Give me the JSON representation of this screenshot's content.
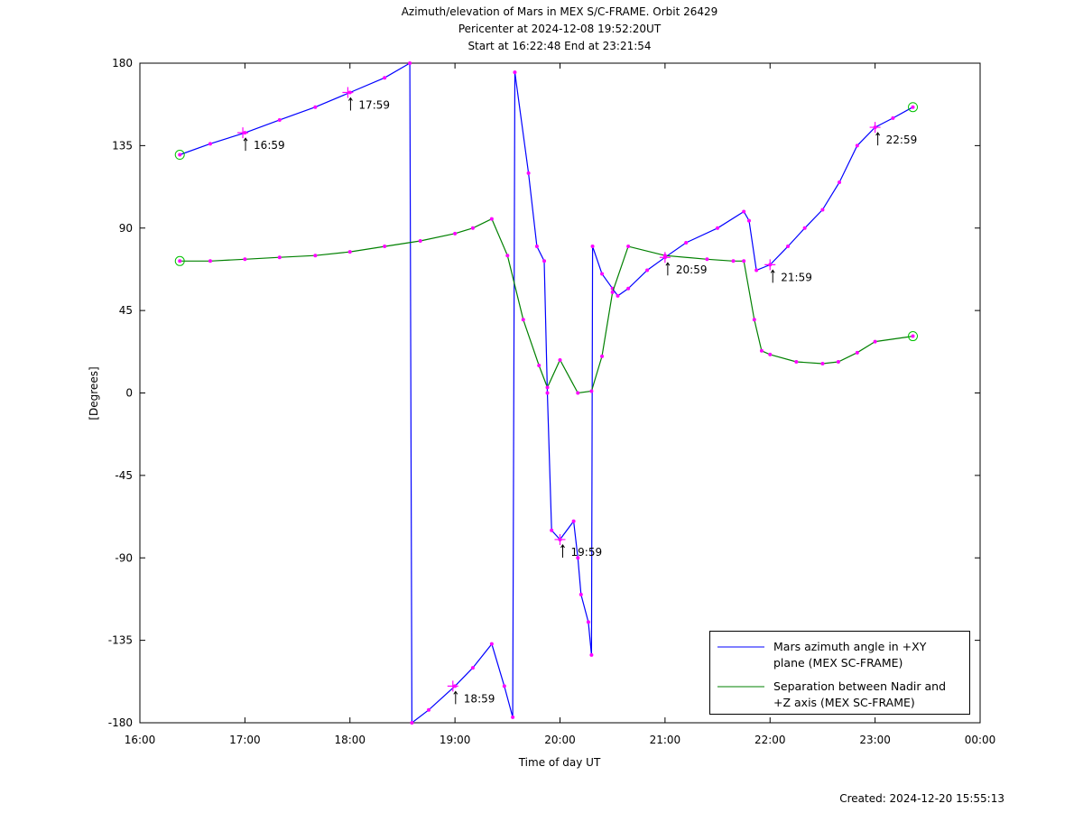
{
  "chart_data": {
    "type": "line",
    "title": "Azimuth/elevation of Mars in MEX S/C-FRAME.  Orbit 26429",
    "subtitle": [
      "Pericenter at 2024-12-08 19:52:20UT",
      "Start at 16:22:48 End at 23:21:54"
    ],
    "x_label": "Time of day UT",
    "y_label": "[Degrees]",
    "footer": "Created: 2024-12-20 15:55:13",
    "xlim": [
      16,
      24
    ],
    "xticks": [
      {
        "value": 16,
        "label": "16:00"
      },
      {
        "value": 17,
        "label": "17:00"
      },
      {
        "value": 18,
        "label": "18:00"
      },
      {
        "value": 19,
        "label": "19:00"
      },
      {
        "value": 20,
        "label": "20:00"
      },
      {
        "value": 21,
        "label": "21:00"
      },
      {
        "value": 22,
        "label": "22:00"
      },
      {
        "value": 23,
        "label": "23:00"
      },
      {
        "value": 24,
        "label": "00:00"
      }
    ],
    "ylim": [
      -180,
      180
    ],
    "yticks": [
      -180,
      -135,
      -90,
      -45,
      0,
      45,
      90,
      135,
      180
    ],
    "marker_color": "#ff00ff",
    "series": [
      {
        "name": "Mars azimuth angle in +XY plane (MEX SC-FRAME)",
        "color": "#0000ff",
        "x": [
          16.38,
          16.67,
          17.0,
          17.33,
          17.67,
          18.0,
          18.33,
          18.57,
          18.59,
          18.75,
          19.0,
          19.17,
          19.35,
          19.47,
          19.55,
          19.57,
          19.7,
          19.78,
          19.85,
          19.88,
          19.92,
          20.0,
          20.13,
          20.17,
          20.2,
          20.27,
          20.3,
          20.31,
          20.4,
          20.5,
          20.55,
          20.65,
          20.83,
          21.0,
          21.2,
          21.5,
          21.75,
          21.8,
          21.87,
          22.0,
          22.17,
          22.33,
          22.5,
          22.66,
          22.83,
          23.0,
          23.17,
          23.36
        ],
        "values": [
          130,
          136,
          142,
          149,
          156,
          164,
          172,
          180,
          -180,
          -173,
          -160,
          -150,
          -137,
          -160,
          -177,
          175,
          120,
          80,
          72,
          0,
          -75,
          -80,
          -70,
          -90,
          -110,
          -125,
          -143,
          80,
          65,
          57,
          53,
          57,
          67,
          74,
          82,
          90,
          99,
          94,
          67,
          70,
          80,
          90,
          100,
          115,
          135,
          145,
          150,
          156
        ]
      },
      {
        "name": "Separation between Nadir and +Z axis (MEX SC-FRAME)",
        "color": "#008000",
        "x": [
          16.38,
          16.67,
          17.0,
          17.33,
          17.67,
          18.0,
          18.33,
          18.67,
          19.0,
          19.17,
          19.35,
          19.5,
          19.65,
          19.8,
          19.88,
          20.0,
          20.17,
          20.3,
          20.4,
          20.5,
          20.65,
          21.0,
          21.4,
          21.65,
          21.75,
          21.85,
          21.92,
          22.0,
          22.25,
          22.5,
          22.65,
          22.83,
          23.0,
          23.36
        ],
        "values": [
          72,
          72,
          73,
          74,
          75,
          77,
          80,
          83,
          87,
          90,
          95,
          75,
          40,
          15,
          3,
          18,
          0,
          1,
          20,
          55,
          80,
          75,
          73,
          72,
          72,
          40,
          23,
          21,
          17,
          16,
          17,
          22,
          28,
          31
        ]
      }
    ],
    "annotations": [
      {
        "text": "16:59",
        "x": 16.98,
        "y": 142
      },
      {
        "text": "17:59",
        "x": 17.98,
        "y": 164
      },
      {
        "text": "18:59",
        "x": 18.98,
        "y": -160
      },
      {
        "text": "19:59",
        "x": 20.0,
        "y": -80
      },
      {
        "text": "20:59",
        "x": 21.0,
        "y": 74
      },
      {
        "text": "21:59",
        "x": 22.0,
        "y": 70
      },
      {
        "text": "22:59",
        "x": 23.0,
        "y": 145
      }
    ]
  }
}
